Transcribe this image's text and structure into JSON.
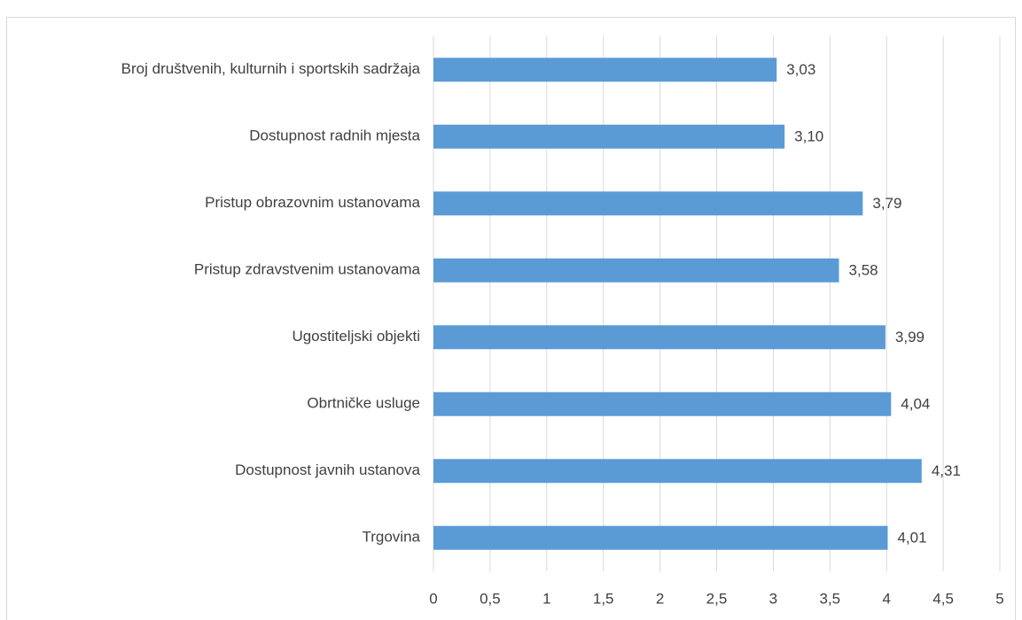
{
  "chart_data": {
    "type": "bar",
    "orientation": "horizontal",
    "categories": [
      "Broj društvenih, kulturnih i sportskih sadržaja",
      "Dostupnost radnih mjesta",
      "Pristup obrazovnim ustanovama",
      "Pristup zdravstvenim ustanovama",
      "Ugostiteljski objekti",
      "Obrtničke usluge",
      "Dostupnost javnih ustanova",
      "Trgovina"
    ],
    "values": [
      3.03,
      3.1,
      3.79,
      3.58,
      3.99,
      4.04,
      4.31,
      4.01
    ],
    "value_labels": [
      "3,03",
      "3,10",
      "3,79",
      "3,58",
      "3,99",
      "4,04",
      "4,31",
      "4,01"
    ],
    "color": "#5b9bd5",
    "xlim": [
      0,
      5
    ],
    "xticks": [
      0,
      {
        "value": 0.5,
        "label": "0,5"
      },
      1,
      {
        "value": 1.5,
        "label": "1,5"
      },
      2,
      {
        "value": 2.5,
        "label": "2,5"
      },
      3,
      {
        "value": 3.5,
        "label": "3,5"
      },
      4,
      {
        "value": 4.5,
        "label": "4,5"
      },
      5
    ],
    "grid": true
  }
}
